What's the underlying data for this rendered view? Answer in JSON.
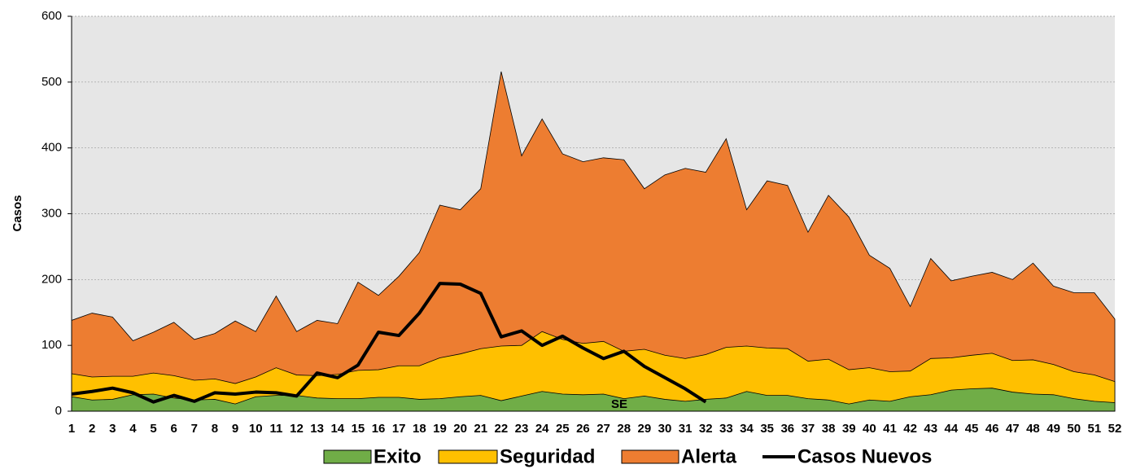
{
  "chart_data": {
    "type": "area",
    "y_label": "Casos",
    "x_label": "SE",
    "categories": [
      "1",
      "2",
      "3",
      "4",
      "5",
      "6",
      "7",
      "8",
      "9",
      "10",
      "11",
      "12",
      "13",
      "14",
      "15",
      "16",
      "17",
      "18",
      "19",
      "20",
      "21",
      "22",
      "23",
      "24",
      "25",
      "26",
      "27",
      "28",
      "29",
      "30",
      "31",
      "32",
      "33",
      "34",
      "35",
      "36",
      "37",
      "38",
      "39",
      "40",
      "41",
      "42",
      "43",
      "44",
      "45",
      "46",
      "47",
      "48",
      "49",
      "50",
      "51",
      "52"
    ],
    "series": [
      {
        "name": "Alerta",
        "color": "#ed7d31",
        "values": [
          138,
          149,
          143,
          107,
          120,
          135,
          109,
          118,
          137,
          121,
          175,
          121,
          138,
          133,
          196,
          176,
          205,
          241,
          313,
          306,
          338,
          516,
          388,
          444,
          391,
          379,
          385,
          382,
          338,
          359,
          369,
          363,
          414,
          306,
          350,
          343,
          272,
          328,
          295,
          237,
          217,
          159,
          232,
          198,
          205,
          211,
          200,
          225,
          190,
          180,
          180,
          140
        ]
      },
      {
        "name": "Seguridad",
        "color": "#ffc000",
        "values": [
          57,
          52,
          53,
          53,
          58,
          54,
          47,
          49,
          42,
          52,
          66,
          55,
          54,
          56,
          62,
          63,
          69,
          69,
          81,
          87,
          95,
          99,
          100,
          121,
          109,
          103,
          106,
          91,
          94,
          85,
          80,
          86,
          97,
          99,
          96,
          95,
          76,
          79,
          63,
          66,
          60,
          61,
          80,
          81,
          85,
          88,
          77,
          78,
          71,
          60,
          55,
          45
        ]
      },
      {
        "name": "Exito",
        "color": "#70ad47",
        "values": [
          22,
          17,
          18,
          25,
          26,
          20,
          17,
          18,
          11,
          22,
          24,
          24,
          20,
          19,
          19,
          21,
          21,
          18,
          19,
          22,
          24,
          16,
          23,
          30,
          26,
          25,
          26,
          19,
          23,
          18,
          15,
          18,
          20,
          30,
          24,
          24,
          19,
          17,
          11,
          17,
          15,
          22,
          25,
          32,
          34,
          35,
          29,
          26,
          25,
          19,
          15,
          13
        ]
      },
      {
        "name": "Casos Nuevos",
        "color": "#000000",
        "type": "line",
        "values": [
          26,
          30,
          35,
          28,
          14,
          24,
          15,
          28,
          26,
          29,
          28,
          23,
          58,
          51,
          70,
          120,
          115,
          149,
          194,
          193,
          179,
          113,
          122,
          100,
          114,
          96,
          80,
          91,
          68,
          51,
          34,
          14,
          null,
          null,
          null,
          null,
          null,
          null,
          null,
          null,
          null,
          null,
          null,
          null,
          null,
          null,
          null,
          null,
          null,
          null,
          null,
          null
        ]
      }
    ],
    "ylim": [
      0,
      600
    ],
    "yticks": [
      0,
      100,
      200,
      300,
      400,
      500,
      600
    ],
    "grid": true,
    "background": "#e6e6e6"
  }
}
